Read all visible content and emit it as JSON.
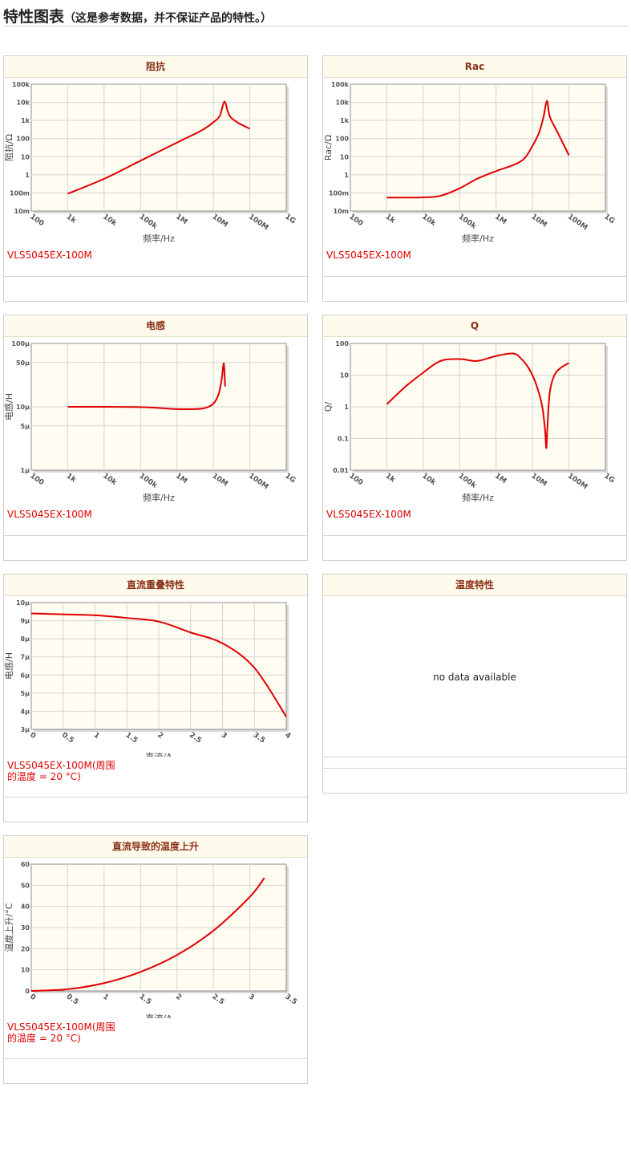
{
  "page": {
    "title": "特性图表",
    "subtitle": "（这是参考数据，并不保证产品的特性。）"
  },
  "charts": [
    {
      "id": "impedance",
      "title": "阻抗",
      "caption": "VLS5045EX-100M",
      "chart_data": {
        "type": "line",
        "xscale": "log",
        "yscale": "log",
        "xlabel": "频率/Hz",
        "ylabel": "阻抗/Ω",
        "xlim": [
          100,
          1000000000
        ],
        "ylim": [
          0.01,
          100000
        ],
        "xticks": [
          100,
          1000,
          10000,
          100000,
          1000000,
          10000000,
          100000000,
          1000000000
        ],
        "xticklabels": [
          "100",
          "1k",
          "10k",
          "100k",
          "1M",
          "10M",
          "100M",
          "1G"
        ],
        "yticks": [
          0.01,
          0.1,
          1,
          10,
          100,
          1000,
          10000,
          100000
        ],
        "yticklabels": [
          "10m",
          "100m",
          "1",
          "10",
          "100",
          "1k",
          "10k",
          "100k"
        ],
        "grid": true,
        "series": [
          {
            "color": "#e00000",
            "x": [
              1000,
              10000,
              100000,
              1000000,
              5000000,
              10000000,
              15000000,
              20000000,
              25000000,
              30000000,
              50000000,
              100000000
            ],
            "y": [
              0.09,
              0.6,
              6,
              60,
              300,
              800,
              1800,
              11000,
              3000,
              1500,
              700,
              350
            ]
          }
        ]
      }
    },
    {
      "id": "rac",
      "title": "Rac",
      "caption": "VLS5045EX-100M",
      "chart_data": {
        "type": "line",
        "xscale": "log",
        "yscale": "log",
        "xlabel": "频率/Hz",
        "ylabel": "Rac/Ω",
        "xlim": [
          100,
          1000000000
        ],
        "ylim": [
          0.01,
          100000
        ],
        "xticks": [
          100,
          1000,
          10000,
          100000,
          1000000,
          10000000,
          100000000,
          1000000000
        ],
        "xticklabels": [
          "100",
          "1k",
          "10k",
          "100k",
          "1M",
          "10M",
          "100M",
          "1G"
        ],
        "yticks": [
          0.01,
          0.1,
          1,
          10,
          100,
          1000,
          10000,
          100000
        ],
        "yticklabels": [
          "10m",
          "100m",
          "1",
          "10",
          "100",
          "1k",
          "10k",
          "100k"
        ],
        "grid": true,
        "series": [
          {
            "color": "#e00000",
            "x": [
              1000,
              10000,
              30000,
              100000,
              300000,
              1000000,
              3000000,
              6000000,
              10000000,
              15000000,
              20000000,
              25000000,
              30000000,
              50000000,
              100000000
            ],
            "y": [
              0.055,
              0.057,
              0.07,
              0.18,
              0.6,
              1.6,
              3.5,
              8,
              40,
              200,
              1500,
              12000,
              1600,
              200,
              12
            ]
          }
        ]
      }
    },
    {
      "id": "inductance",
      "title": "电感",
      "caption": "VLS5045EX-100M",
      "chart_data": {
        "type": "line",
        "xscale": "log",
        "yscale": "log",
        "xlabel": "频率/Hz",
        "ylabel": "电感/H",
        "xlim": [
          100,
          1000000000
        ],
        "ylim": [
          1e-06,
          0.0001
        ],
        "xticks": [
          100,
          1000,
          10000,
          100000,
          1000000,
          10000000,
          100000000,
          1000000000
        ],
        "xticklabels": [
          "100",
          "1k",
          "10k",
          "100k",
          "1M",
          "10M",
          "100M",
          "1G"
        ],
        "yticks": [
          1e-06,
          5e-06,
          1e-05,
          5e-05,
          0.0001
        ],
        "yticklabels": [
          "1μ",
          "5μ",
          "10μ",
          "50μ",
          "100μ"
        ],
        "grid": true,
        "series": [
          {
            "color": "#e00000",
            "x": [
              1000,
              10000,
              100000,
              300000,
              1000000,
              3000000,
              6000000,
              10000000,
              14000000,
              17000000,
              19000000,
              20000000,
              21000000
            ],
            "y": [
              1e-05,
              1e-05,
              9.9e-06,
              9.6e-06,
              9.2e-06,
              9.2e-06,
              9.6e-06,
              1.12e-05,
              1.6e-05,
              2.8e-05,
              4.8e-05,
              3.8e-05,
              2.1e-05
            ]
          }
        ]
      }
    },
    {
      "id": "q",
      "title": "Q",
      "caption": "VLS5045EX-100M",
      "chart_data": {
        "type": "line",
        "xscale": "log",
        "yscale": "log",
        "xlabel": "频率/Hz",
        "ylabel": "Q/",
        "xlim": [
          100,
          1000000000
        ],
        "ylim": [
          0.01,
          100
        ],
        "xticks": [
          100,
          1000,
          10000,
          100000,
          1000000,
          10000000,
          100000000,
          1000000000
        ],
        "xticklabels": [
          "100",
          "1k",
          "10k",
          "100k",
          "1M",
          "10M",
          "100M",
          "1G"
        ],
        "yticks": [
          0.01,
          0.1,
          1,
          10,
          100
        ],
        "yticklabels": [
          "0.01",
          "0.1",
          "1",
          "10",
          "100"
        ],
        "grid": true,
        "series": [
          {
            "color": "#e00000",
            "x": [
              1000,
              3000,
              10000,
              30000,
              100000,
              300000,
              1000000,
              3000000,
              5000000,
              8000000,
              12000000,
              18000000,
              22000000,
              24000000,
              26000000,
              30000000,
              40000000,
              60000000,
              100000000
            ],
            "y": [
              1.2,
              4,
              12,
              28,
              32,
              28,
              40,
              48,
              32,
              16,
              6,
              1.2,
              0.2,
              0.05,
              0.3,
              3,
              10,
              17,
              24
            ]
          }
        ]
      }
    },
    {
      "id": "dc-bias",
      "title": "直流重叠特性",
      "caption": "VLS5045EX-100M(周围\n的温度 = 20 °C)",
      "chart_data": {
        "type": "line",
        "xscale": "linear",
        "yscale": "linear",
        "xlabel": "直流/A",
        "ylabel": "电感/H",
        "xlim": [
          0,
          4
        ],
        "ylim": [
          3,
          10
        ],
        "xticks": [
          0,
          0.5,
          1,
          1.5,
          2,
          2.5,
          3,
          3.5,
          4
        ],
        "xticklabels": [
          "0",
          "0.5",
          "1",
          "1.5",
          "2",
          "2.5",
          "3",
          "3.5",
          "4"
        ],
        "yticks": [
          3,
          4,
          5,
          6,
          7,
          8,
          9,
          10
        ],
        "yticklabels": [
          "3μ",
          "4μ",
          "5μ",
          "6μ",
          "7μ",
          "8μ",
          "9μ",
          "10μ"
        ],
        "grid": true,
        "series": [
          {
            "color": "#e00000",
            "x": [
              0,
              0.5,
              1,
              1.5,
              2,
              2.5,
              3,
              3.5,
              4
            ],
            "y": [
              9.4,
              9.35,
              9.3,
              9.15,
              8.95,
              8.35,
              7.75,
              6.4,
              3.7
            ]
          }
        ]
      }
    },
    {
      "id": "temp-char",
      "title": "温度特性",
      "nodata": "no data available"
    },
    {
      "id": "temp-rise",
      "title": "直流导致的温度上升",
      "caption": "VLS5045EX-100M(周围\n的温度 = 20 °C)",
      "chart_data": {
        "type": "line",
        "xscale": "linear",
        "yscale": "linear",
        "xlabel": "直流/A",
        "ylabel": "温度上升/°C",
        "xlim": [
          0,
          3.5
        ],
        "ylim": [
          0,
          60
        ],
        "xticks": [
          0,
          0.5,
          1,
          1.5,
          2,
          2.5,
          3,
          3.5
        ],
        "xticklabels": [
          "0",
          "0.5",
          "1",
          "1.5",
          "2",
          "2.5",
          "3",
          "3.5"
        ],
        "yticks": [
          0,
          10,
          20,
          30,
          40,
          50,
          60
        ],
        "yticklabels": [
          "0",
          "10",
          "20",
          "30",
          "40",
          "50",
          "60"
        ],
        "grid": true,
        "series": [
          {
            "color": "#e00000",
            "x": [
              0,
              0.5,
              1,
              1.5,
              2,
              2.5,
              3,
              3.2
            ],
            "y": [
              0,
              0.8,
              3.7,
              9,
              17,
              28.5,
              44.5,
              53.5
            ]
          }
        ]
      }
    }
  ]
}
